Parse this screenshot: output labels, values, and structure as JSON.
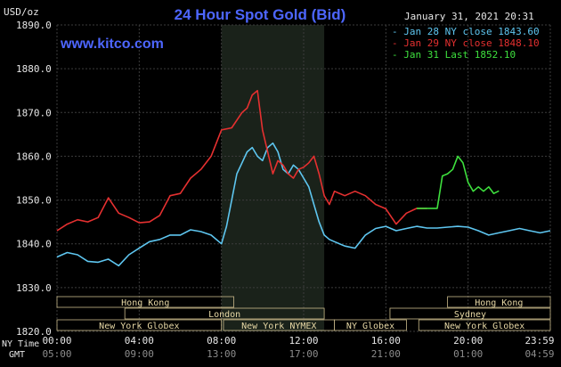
{
  "chart_data": {
    "type": "line",
    "title": "24 Hour Spot Gold (Bid)",
    "watermark": "www.kitco.com",
    "date_label": "January 31, 2021 20:31",
    "ylabel": "USD/oz",
    "ylim": [
      1820,
      1890
    ],
    "y_ticks": [
      "1890.0",
      "1880.0",
      "1870.0",
      "1860.0",
      "1850.0",
      "1840.0",
      "1830.0",
      "1820.0"
    ],
    "xlim": [
      0,
      24
    ],
    "x_ticks_ny": [
      "00:00",
      "04:00",
      "08:00",
      "12:00",
      "16:00",
      "20:00",
      "23:59"
    ],
    "x_ticks_gmt": [
      "05:00",
      "09:00",
      "13:00",
      "17:00",
      "21:00",
      "01:00",
      "04:59"
    ],
    "x_row_labels": [
      "NY Time",
      "GMT"
    ],
    "highlight_hours": [
      8,
      13
    ],
    "colors": {
      "background": "#000000",
      "grid": "#3c3c3c",
      "highlight": "#1a221a",
      "title": "#4d66ff",
      "axis_text": "#e6e6e6",
      "session_text": "#e8d9a6",
      "session_border": "#c9b98a"
    },
    "legend": [
      {
        "label": "Jan 28 NY close 1843.60",
        "color": "#5ec6f0"
      },
      {
        "label": "Jan 29 NY close 1848.10",
        "color": "#e53030"
      },
      {
        "label": "Jan 31 Last 1852.10",
        "color": "#3ee03e"
      }
    ],
    "sessions": [
      {
        "label": "Hong Kong",
        "start": 0,
        "end": 8.6,
        "row": 0
      },
      {
        "label": "Hong Kong",
        "start": 19,
        "end": 24,
        "row": 0
      },
      {
        "label": "London",
        "start": 3.3,
        "end": 13,
        "row": 1
      },
      {
        "label": "Sydney",
        "start": 16.2,
        "end": 24,
        "row": 1
      },
      {
        "label": "New York Globex",
        "start": 0,
        "end": 8,
        "row": 2
      },
      {
        "label": "New York NYMEX",
        "start": 8.1,
        "end": 13.5,
        "row": 2
      },
      {
        "label": "NY Globex",
        "start": 13.5,
        "end": 17,
        "row": 2
      },
      {
        "label": "New York Globex",
        "start": 17.6,
        "end": 24,
        "row": 2
      }
    ],
    "series": [
      {
        "name": "Jan 28 NY close 1843.60",
        "color": "#5ec6f0",
        "x": [
          0,
          0.5,
          1,
          1.5,
          2,
          2.5,
          3,
          3.5,
          4,
          4.5,
          5,
          5.5,
          6,
          6.5,
          7,
          7.5,
          8,
          8.25,
          8.5,
          8.75,
          9,
          9.25,
          9.5,
          9.75,
          10,
          10.25,
          10.5,
          10.75,
          11,
          11.25,
          11.5,
          11.75,
          12,
          12.25,
          12.5,
          12.75,
          13,
          13.25,
          13.5,
          14,
          14.5,
          15,
          15.5,
          16,
          16.5,
          17,
          17.5,
          18,
          18.5,
          19,
          19.5,
          20,
          20.5,
          21,
          21.5,
          22,
          22.5,
          23,
          23.5,
          24
        ],
        "values": [
          1837.0,
          1838.0,
          1837.5,
          1836.0,
          1835.8,
          1836.5,
          1835.0,
          1837.5,
          1839.0,
          1840.5,
          1841.0,
          1842.0,
          1842.0,
          1843.2,
          1842.8,
          1842.0,
          1840.0,
          1844.0,
          1850.0,
          1856.0,
          1858.5,
          1861.0,
          1862.0,
          1860.0,
          1859.0,
          1862.0,
          1863.0,
          1861.0,
          1857.0,
          1856.0,
          1858.0,
          1857.0,
          1855.0,
          1853.0,
          1849.0,
          1845.0,
          1842.0,
          1841.0,
          1840.5,
          1839.5,
          1839.0,
          1842.0,
          1843.5,
          1844.0,
          1843.0,
          1843.5,
          1844.0,
          1843.6,
          1843.6,
          1843.8,
          1844.0,
          1843.8,
          1843.0,
          1842.0,
          1842.5,
          1843.0,
          1843.5,
          1843.0,
          1842.5,
          1843.0
        ]
      },
      {
        "name": "Jan 29 NY close 1848.10",
        "color": "#e53030",
        "x": [
          0,
          0.5,
          1,
          1.5,
          2,
          2.5,
          3,
          3.5,
          4,
          4.5,
          5,
          5.5,
          6,
          6.5,
          7,
          7.5,
          8,
          8.5,
          9,
          9.25,
          9.5,
          9.75,
          10,
          10.25,
          10.5,
          10.75,
          11,
          11.25,
          11.5,
          11.75,
          12,
          12.25,
          12.5,
          12.75,
          13,
          13.25,
          13.5,
          14,
          14.5,
          15,
          15.5,
          16,
          16.5,
          17,
          17.5,
          18
        ],
        "values": [
          1843.0,
          1844.5,
          1845.5,
          1845.0,
          1846.0,
          1850.5,
          1847.0,
          1846.0,
          1844.8,
          1845.0,
          1846.5,
          1851.0,
          1851.5,
          1855.0,
          1857.0,
          1860.0,
          1866.0,
          1866.5,
          1870.0,
          1871.0,
          1874.0,
          1875.0,
          1866.0,
          1861.0,
          1856.0,
          1859.0,
          1858.0,
          1856.0,
          1855.0,
          1857.0,
          1857.5,
          1858.5,
          1860.0,
          1856.0,
          1851.0,
          1849.0,
          1852.0,
          1851.0,
          1852.0,
          1851.0,
          1849.0,
          1848.0,
          1844.5,
          1847.0,
          1848.1,
          1848.1
        ]
      },
      {
        "name": "Jan 31 Last 1852.10",
        "color": "#3ee03e",
        "x": [
          17.5,
          18,
          18.5,
          18.75,
          19,
          19.25,
          19.5,
          19.75,
          20,
          20.25,
          20.5,
          20.75,
          21,
          21.25,
          21.5
        ],
        "values": [
          1848.1,
          1848.1,
          1848.1,
          1855.5,
          1856.0,
          1857.0,
          1860.0,
          1858.5,
          1854.0,
          1852.0,
          1853.0,
          1852.0,
          1853.0,
          1851.5,
          1852.1
        ]
      }
    ]
  }
}
